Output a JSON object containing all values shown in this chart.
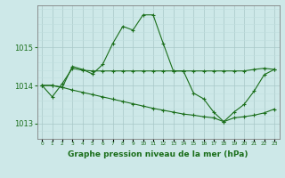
{
  "background_color": "#cde8e8",
  "grid_color_major": "#a8c8c8",
  "grid_color_minor": "#c0dede",
  "line_color": "#1a6e1a",
  "marker_color": "#1a6e1a",
  "xlabel": "Graphe pression niveau de la mer (hPa)",
  "xlim": [
    -0.5,
    23.5
  ],
  "ylim": [
    1012.6,
    1016.1
  ],
  "yticks": [
    1013,
    1014,
    1015
  ],
  "xticks": [
    0,
    1,
    2,
    3,
    4,
    5,
    6,
    7,
    8,
    9,
    10,
    11,
    12,
    13,
    14,
    15,
    16,
    17,
    18,
    19,
    20,
    21,
    22,
    23
  ],
  "series1_x": [
    0,
    1,
    2,
    3,
    4,
    5,
    6,
    7,
    8,
    9,
    10,
    11,
    12,
    13,
    14,
    15,
    16,
    17,
    18,
    19,
    20,
    21,
    22,
    23
  ],
  "series1_y": [
    1014.0,
    1013.7,
    1014.05,
    1014.45,
    1014.4,
    1014.38,
    1014.38,
    1014.38,
    1014.38,
    1014.38,
    1014.38,
    1014.38,
    1014.38,
    1014.38,
    1014.38,
    1014.38,
    1014.38,
    1014.38,
    1014.38,
    1014.38,
    1014.38,
    1014.42,
    1014.45,
    1014.42
  ],
  "series2_x": [
    0,
    1,
    2,
    3,
    4,
    5,
    6,
    7,
    8,
    9,
    10,
    11,
    12,
    13,
    14,
    15,
    16,
    17,
    18,
    19,
    20,
    21,
    22,
    23
  ],
  "series2_y": [
    1014.0,
    1014.0,
    1013.95,
    1014.5,
    1014.42,
    1014.3,
    1014.55,
    1015.1,
    1015.55,
    1015.45,
    1015.85,
    1015.85,
    1015.1,
    1014.38,
    1014.38,
    1013.8,
    1013.65,
    1013.3,
    1013.05,
    1013.3,
    1013.5,
    1013.85,
    1014.28,
    1014.42
  ],
  "series3_x": [
    0,
    1,
    2,
    3,
    4,
    5,
    6,
    7,
    8,
    9,
    10,
    11,
    12,
    13,
    14,
    15,
    16,
    17,
    18,
    19,
    20,
    21,
    22,
    23
  ],
  "series3_y": [
    1014.0,
    1014.0,
    1013.95,
    1013.88,
    1013.82,
    1013.76,
    1013.7,
    1013.64,
    1013.58,
    1013.52,
    1013.46,
    1013.4,
    1013.35,
    1013.3,
    1013.25,
    1013.22,
    1013.18,
    1013.15,
    1013.05,
    1013.15,
    1013.18,
    1013.22,
    1013.28,
    1013.38
  ]
}
